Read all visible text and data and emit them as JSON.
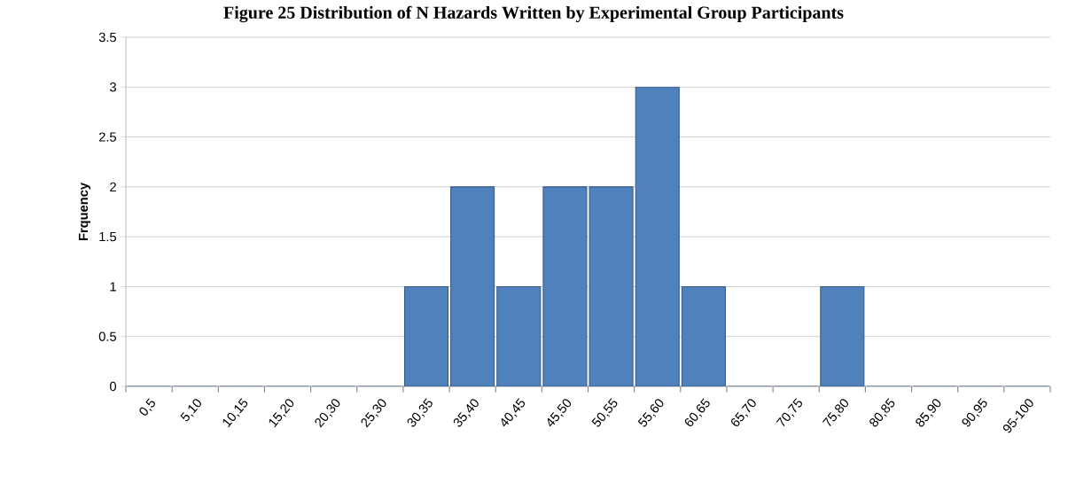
{
  "chart_data": {
    "type": "bar",
    "title": "Figure 25 Distribution of N Hazards Written by Experimental Group Participants",
    "ylabel": "Frquency",
    "categories": [
      "0,5",
      "5,10",
      "10,15",
      "15,20",
      "20,30",
      "25,30",
      "30,35",
      "35,40",
      "40,45",
      "45,50",
      "50,55",
      "55,60",
      "60,65",
      "65,70",
      "70,75",
      "75,80",
      "80,85",
      "85,90",
      "90,95",
      "95-100"
    ],
    "values": [
      0,
      0,
      0,
      0,
      0,
      0,
      1,
      2,
      1,
      2,
      2,
      3,
      1,
      0,
      0,
      1,
      0,
      0,
      0,
      0
    ],
    "color": "#4f81bd",
    "ylim": [
      0,
      3.5
    ],
    "yticks": [
      0,
      0.5,
      1,
      1.5,
      2,
      2.5,
      3,
      3.5
    ],
    "grid": "y"
  }
}
